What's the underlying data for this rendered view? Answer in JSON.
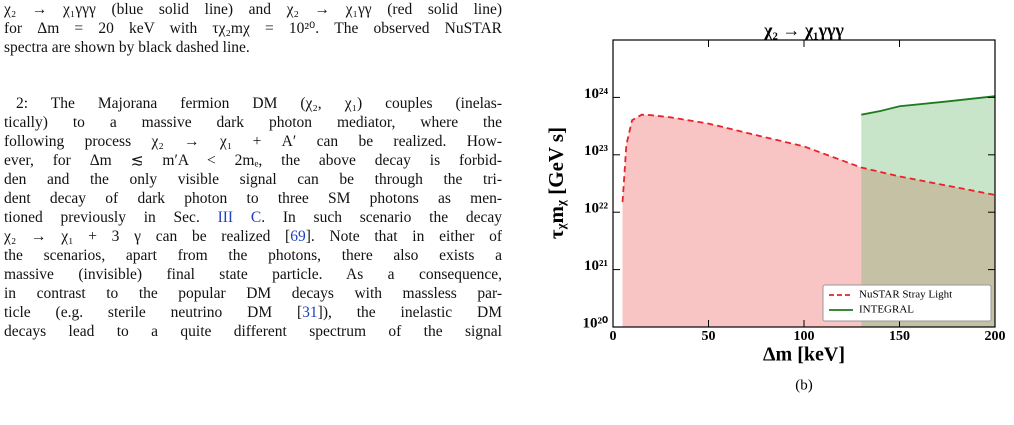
{
  "text": {
    "caption": [
      [
        "χ₂ → χ₁γγγ (blue solid line) and χ₂ → χ₁γγ (red solid line)"
      ],
      [
        "for Δm = 20 keV with τχ₂mχ = 10²⁰. The observed NuSTAR"
      ],
      [
        "spectra are shown by black dashed line."
      ]
    ],
    "paragraph": [
      [
        "2: The Majorana fermion DM (χ₂, χ₁) couples (inelas-"
      ],
      [
        "tically) to a massive dark photon mediator, where the"
      ],
      [
        "following process χ₂ → χ₁ + A′ can be realized. How-"
      ],
      [
        "ever, for Δm ≲ m′A < 2mₑ, the above decay is forbid-"
      ],
      [
        "den and the only visible signal can be through the tri-"
      ],
      [
        "dent decay of dark photon to three SM photons as men-"
      ],
      [
        "tioned previously in Sec. ",
        "III C",
        ". In such scenario the decay"
      ],
      [
        "χ₂ → χ₁ + 3 γ can be realized [",
        "69",
        "]. Note that in either of"
      ],
      [
        "the scenarios, apart from the photons, there also exists a"
      ],
      [
        "massive (invisible) final state particle. As a consequence,"
      ],
      [
        "in contrast to the popular DM decays with massless par-"
      ],
      [
        "ticle (e.g. sterile neutrino DM [",
        "31",
        "]), the inelastic DM"
      ],
      [
        "decays lead to a quite different spectrum of the signal"
      ]
    ]
  },
  "chart_data": {
    "type": "line",
    "title": "χ₂ → χ₁γγγ",
    "x_label": "Δm [keV]",
    "y_label": "τᵪmᵪ [GeV s]",
    "caption": "(b)",
    "xlim": [
      0,
      200
    ],
    "xticks": [
      0,
      50,
      100,
      150,
      200
    ],
    "ylim": [
      1e+20,
      1e+25
    ],
    "yscale": "log",
    "yticks": [
      {
        "value": 1e+20,
        "label": "10²⁰"
      },
      {
        "value": 1e+21,
        "label": "10²¹"
      },
      {
        "value": 1e+22,
        "label": "10²²"
      },
      {
        "value": 1e+23,
        "label": "10²³"
      },
      {
        "value": 1e+24,
        "label": "10²⁴"
      }
    ],
    "legend": "lower right",
    "series": [
      {
        "name": "NuSTAR Stray Light",
        "color": "#e8222a",
        "fill": "#f9c4c4",
        "dashed": true,
        "x": [
          5,
          7,
          10,
          15,
          20,
          30,
          50,
          75,
          100,
          130,
          150,
          175,
          200
        ],
        "values": [
          1.5e+22,
          1.5e+23,
          4e+23,
          5e+23,
          4.9e+23,
          4.5e+23,
          3.5e+23,
          2.2e+23,
          1.4e+23,
          6e+22,
          4.2e+22,
          2.9e+22,
          2e+22
        ]
      },
      {
        "name": "INTEGRAL",
        "color": "#1e7a1e",
        "fill": "rgba(120,190,120,0.4)",
        "dashed": false,
        "x": [
          130,
          140,
          150,
          175,
          200
        ],
        "values": [
          5e+23,
          5.8e+23,
          7e+23,
          8.5e+23,
          1.05e+24
        ]
      }
    ]
  }
}
